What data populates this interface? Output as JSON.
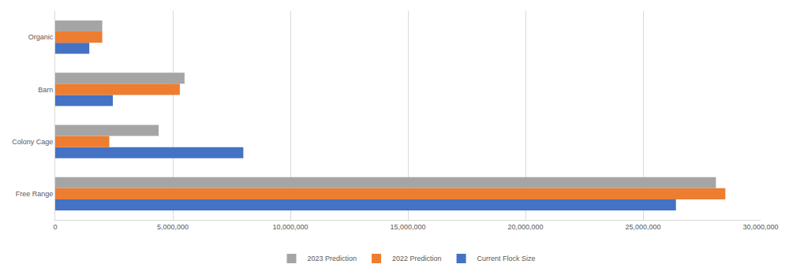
{
  "chart_data": {
    "type": "bar",
    "orientation": "horizontal",
    "categories": [
      "Free Range",
      "Colony Cage",
      "Barn",
      "Organic"
    ],
    "series": [
      {
        "name": "Current Flock Size",
        "color": "#4472c4",
        "values": [
          26400000,
          8000000,
          2450000,
          1450000
        ]
      },
      {
        "name": "2022 Prediction",
        "color": "#ed7d31",
        "values": [
          28500000,
          2300000,
          5300000,
          2000000
        ]
      },
      {
        "name": "2023 Prediction",
        "color": "#a5a5a5",
        "values": [
          28100000,
          4400000,
          5500000,
          2000000
        ]
      }
    ],
    "xlim": [
      0,
      30000000
    ],
    "xticks": [
      0,
      {
        "value": 5000000,
        "label": "5,000,000"
      },
      {
        "value": 10000000,
        "label": "10,000,000"
      },
      {
        "value": 15000000,
        "label": "15,000,000"
      },
      {
        "value": 20000000,
        "label": "20,000,000"
      },
      {
        "value": 25000000,
        "label": "25,000,000"
      },
      {
        "value": 30000000,
        "label": "30,000,000"
      }
    ],
    "grid": true,
    "legend": "bottom"
  }
}
